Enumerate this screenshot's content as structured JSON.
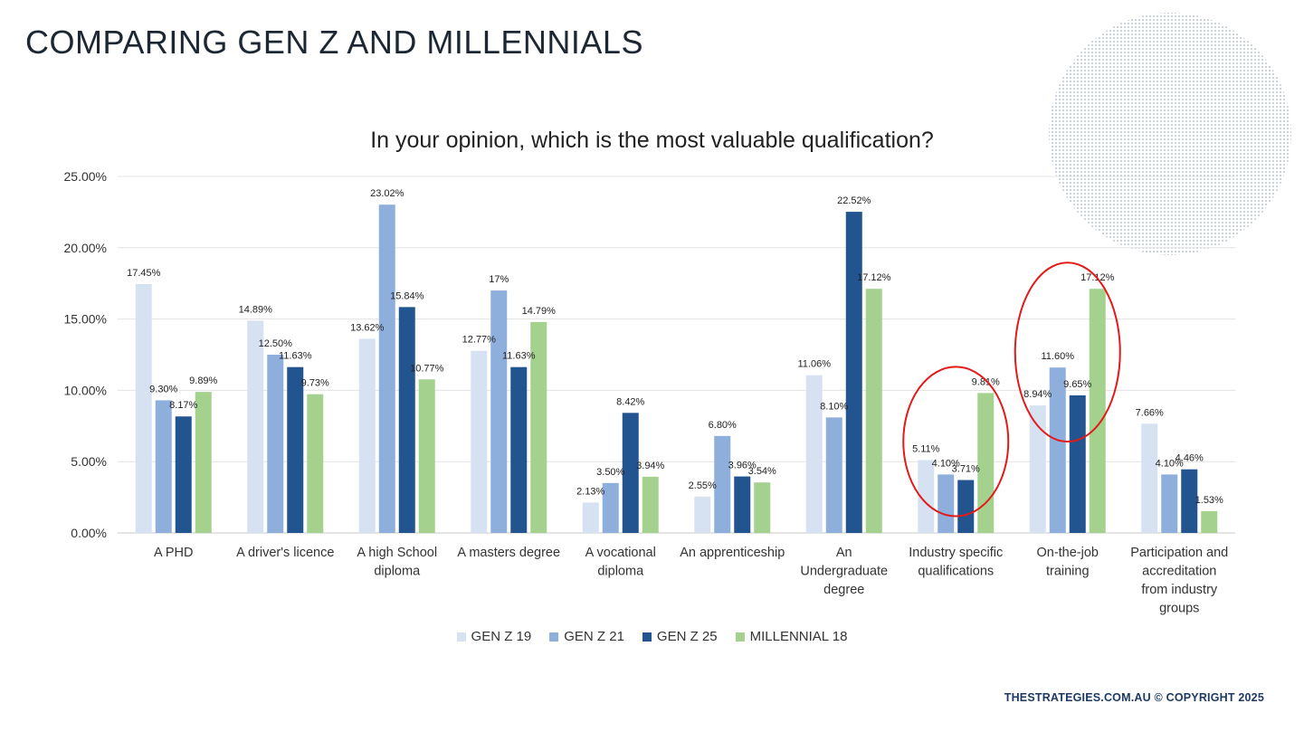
{
  "slide": {
    "title": "COMPARING GEN Z AND MILLENNIALS",
    "footer": "THESTRATEGIES.COM.AU © COPYRIGHT 2025"
  },
  "colors": {
    "gen_z_19": "#d6e2f1",
    "gen_z_21": "#8eaedc",
    "gen_z_25": "#22548f",
    "millennial_18": "#a5d18e",
    "highlight_circle": "#e21a1a",
    "decoration_dots": "#8aa0b8"
  },
  "chart_data": {
    "type": "bar",
    "title": "In your opinion, which is the most valuable qualification?",
    "xlabel": "",
    "ylabel": "",
    "ylim": [
      0,
      25
    ],
    "yticks": [
      "0.00%",
      "5.00%",
      "10.00%",
      "15.00%",
      "20.00%",
      "25.00%"
    ],
    "grid": true,
    "legend_position": "bottom",
    "categories": [
      [
        "A PHD"
      ],
      [
        "A driver's licence"
      ],
      [
        "A high School",
        "diploma"
      ],
      [
        "A masters degree"
      ],
      [
        "A vocational",
        "diploma"
      ],
      [
        "An apprenticeship"
      ],
      [
        "An",
        "Undergraduate",
        "degree"
      ],
      [
        "Industry specific",
        "qualifications"
      ],
      [
        "On-the-job",
        "training"
      ],
      [
        "Participation and",
        "accreditation",
        "from industry",
        "groups"
      ]
    ],
    "series": [
      {
        "name": "GEN Z 19",
        "values": [
          17.45,
          14.89,
          13.62,
          12.77,
          2.13,
          2.55,
          11.06,
          5.11,
          8.94,
          7.66
        ],
        "labels": [
          "17.45%",
          "14.89%",
          "13.62%",
          "12.77%",
          "2.13%",
          "2.55%",
          "11.06%",
          "5.11%",
          "8.94%",
          "7.66%"
        ]
      },
      {
        "name": "GEN Z 21",
        "values": [
          9.3,
          12.5,
          23.02,
          17,
          3.5,
          6.8,
          8.1,
          4.1,
          11.6,
          4.1
        ],
        "labels": [
          "9.30%",
          "12.50%",
          "23.02%",
          "17%",
          "3.50%",
          "6.80%",
          "8.10%",
          "4.10%",
          "11.60%",
          "4.10%"
        ]
      },
      {
        "name": "GEN Z 25",
        "values": [
          8.17,
          11.63,
          15.84,
          11.63,
          8.42,
          3.96,
          22.52,
          3.71,
          9.65,
          4.46
        ],
        "labels": [
          "8.17%",
          "11.63%",
          "15.84%",
          "11.63%",
          "8.42%",
          "3.96%",
          "22.52%",
          "3.71%",
          "9.65%",
          "4.46%"
        ]
      },
      {
        "name": "MILLENNIAL 18",
        "values": [
          9.89,
          9.73,
          10.77,
          14.79,
          3.94,
          3.54,
          17.12,
          9.81,
          17.12,
          1.53
        ],
        "labels": [
          "9.89%",
          "9.73%",
          "10.77%",
          "14.79%",
          "3.94%",
          "3.54%",
          "17.12%",
          "9.81%",
          "17.12%",
          "1.53%"
        ]
      }
    ],
    "highlighted_categories": [
      7,
      8
    ]
  }
}
